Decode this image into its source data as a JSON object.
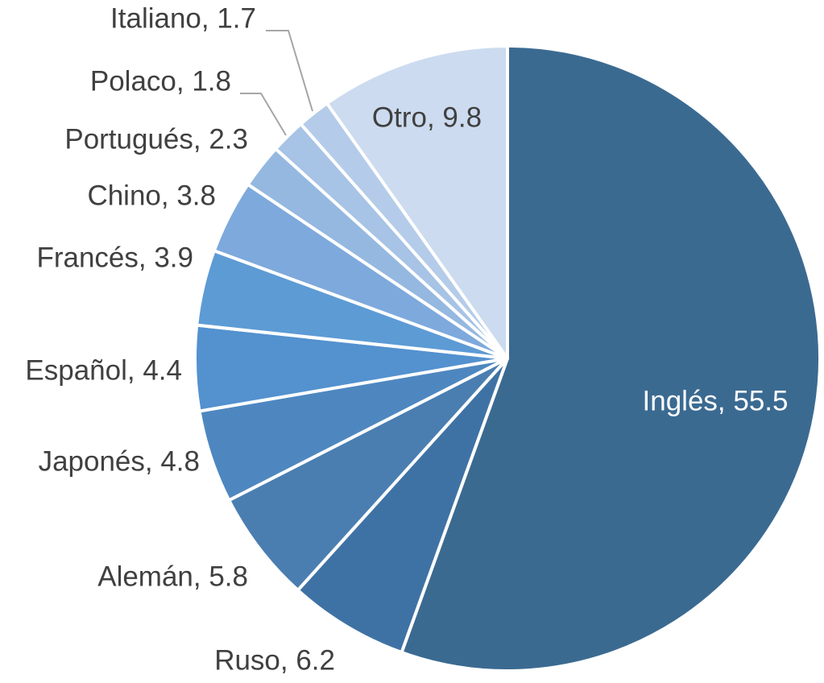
{
  "chart_data": {
    "type": "pie",
    "values": [
      55.5,
      6.2,
      5.8,
      4.8,
      4.4,
      3.9,
      3.8,
      2.3,
      1.8,
      1.7,
      9.8
    ],
    "value_labels": [
      "Inglés, 55.5",
      "Ruso, 6.2",
      "Alemán, 5.8",
      "Japonés, 4.8",
      "Español, 4.4",
      "Francés, 3.9",
      "Chino, 3.8",
      "Portugués, 2.3",
      "Polaco, 1.8",
      "Italiano, 1.7",
      "Otro, 9.8"
    ],
    "colors": [
      "#3b6a91",
      "#3f72a4",
      "#4a7eb1",
      "#4e87c0",
      "#5391cf",
      "#5d9bd5",
      "#7ea9dc",
      "#95b8e0",
      "#a7c3e5",
      "#b4cce9",
      "#ccdbef"
    ]
  }
}
